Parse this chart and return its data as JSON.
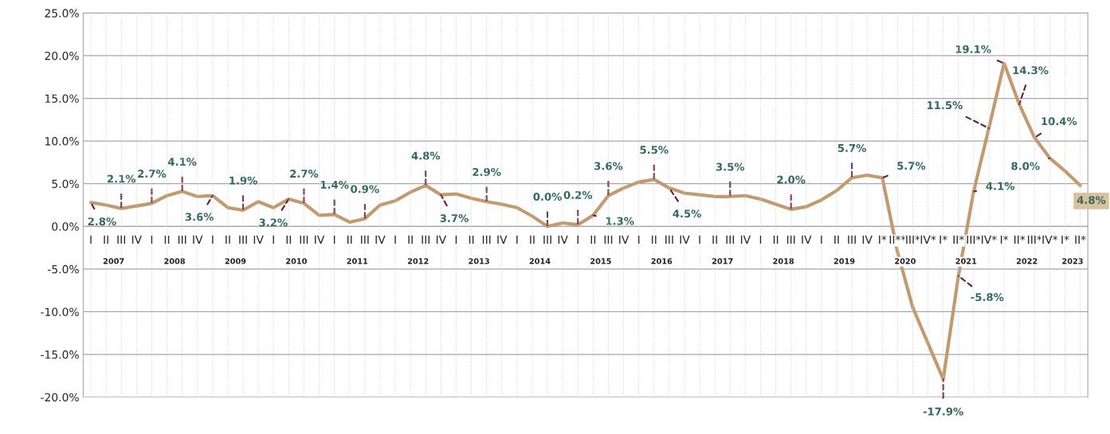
{
  "chart_data": {
    "type": "line",
    "categories": [
      "I",
      "II",
      "III",
      "IV",
      "I",
      "II",
      "III",
      "IV",
      "I",
      "II",
      "III",
      "IV",
      "I",
      "II",
      "III",
      "IV",
      "I",
      "II",
      "III",
      "IV",
      "I",
      "II",
      "III",
      "IV",
      "I",
      "II",
      "III",
      "IV",
      "I",
      "II",
      "III",
      "IV",
      "I",
      "II",
      "III",
      "IV",
      "I",
      "II",
      "III",
      "IV",
      "I",
      "II",
      "III",
      "IV",
      "I",
      "II",
      "III",
      "IV",
      "I",
      "II",
      "III",
      "IV",
      "I*",
      "II**",
      "III*",
      "IV*",
      "I*",
      "II*",
      "III*",
      "IV*",
      "I*",
      "II*",
      "III*",
      "IV*",
      "I*",
      "II*"
    ],
    "annotations": [
      "2007",
      "2008",
      "2009",
      "2010",
      "2011",
      "2012",
      "2013",
      "2014",
      "2015",
      "2016",
      "2017",
      "2018",
      "2019",
      "2020",
      "2021",
      "2022",
      "2023"
    ],
    "series": [
      {
        "color": "#c49a6c",
        "values": [
          2.8,
          2.5,
          2.1,
          2.4,
          2.7,
          3.6,
          4.1,
          3.5,
          3.6,
          2.2,
          1.9,
          2.9,
          2.2,
          3.2,
          2.7,
          1.3,
          1.4,
          0.5,
          0.9,
          2.5,
          3.0,
          4.0,
          4.8,
          3.7,
          3.8,
          3.3,
          2.9,
          2.6,
          2.2,
          1.2,
          0.0,
          0.4,
          0.2,
          1.3,
          3.6,
          4.5,
          5.2,
          5.5,
          4.5,
          3.9,
          3.7,
          3.5,
          3.5,
          3.6,
          3.2,
          2.6,
          2.0,
          2.3,
          3.1,
          4.2,
          5.7,
          6.0,
          5.7,
          -3.0,
          -9.5,
          -13.7,
          -17.9,
          -5.8,
          4.1,
          11.5,
          19.1,
          14.3,
          10.4,
          8.0,
          6.5,
          4.8
        ],
        "value_labels": [
          "2.8%",
          null,
          "2.1%",
          null,
          "2.7%",
          null,
          "4.1%",
          null,
          "3.6%",
          null,
          "1.9%",
          null,
          null,
          "3.2%",
          "2.7%",
          null,
          "1.4%",
          null,
          "0.9%",
          null,
          null,
          null,
          "4.8%",
          "3.7%",
          null,
          null,
          "2.9%",
          null,
          null,
          null,
          "0.0%",
          null,
          "0.2%",
          "1.3%",
          "3.6%",
          null,
          null,
          "5.5%",
          "4.5%",
          null,
          null,
          null,
          "3.5%",
          null,
          null,
          null,
          "2.0%",
          null,
          null,
          null,
          "5.7%",
          null,
          "5.7%",
          null,
          null,
          null,
          "-17.9%",
          "-5.8%",
          "4.1%",
          "11.5%",
          "19.1%",
          "14.3%",
          "10.4%",
          "8.0%",
          null,
          "4.8%"
        ]
      }
    ],
    "ylim": [
      -20,
      25
    ],
    "yticks": [
      {
        "value": -20,
        "label": "-20.0%"
      },
      {
        "value": -15,
        "label": "-15.0%"
      },
      {
        "value": -10,
        "label": "-10.0%"
      },
      {
        "value": -5,
        "label": "-5.0%"
      },
      {
        "value": 0,
        "label": "0.0%"
      },
      {
        "value": 5,
        "label": "5.0%"
      },
      {
        "value": 10,
        "label": "10.0%"
      },
      {
        "value": 15,
        "label": "15.0%"
      },
      {
        "value": 20,
        "label": "20.0%"
      },
      {
        "value": 25,
        "label": "25.0%"
      }
    ],
    "grid": true,
    "legend": false,
    "marker": "none",
    "line_style": "solid"
  }
}
